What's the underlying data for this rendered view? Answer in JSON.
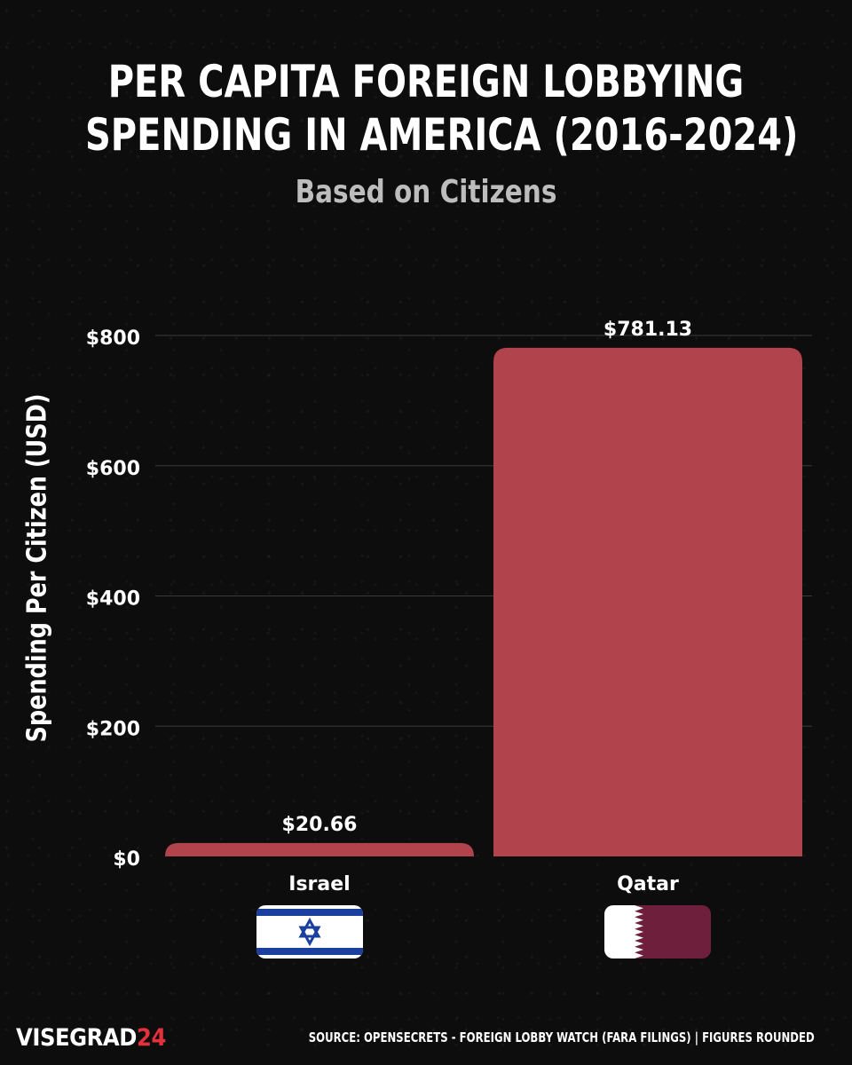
{
  "chart_data": {
    "type": "bar",
    "title_lines": [
      "Per Capita Foreign Lobbying",
      "Spending in America (2016-2024)"
    ],
    "subtitle": "Based on Citizens",
    "ylabel": "Spending Per Citizen (USD)",
    "xlabel": "",
    "categories": [
      "Israel",
      "Qatar"
    ],
    "values": [
      20.66,
      781.13
    ],
    "value_labels": [
      "$20.66",
      "$781.13"
    ],
    "ylim": [
      0,
      800
    ],
    "yticks": [
      0,
      200,
      400,
      600,
      800
    ],
    "ytick_labels": [
      "$0",
      "$200",
      "$400",
      "$600",
      "$800"
    ],
    "grid": true,
    "bar_color": "#b0434b"
  },
  "flags": [
    {
      "country": "Israel",
      "icon": "israel-flag-icon"
    },
    {
      "country": "Qatar",
      "icon": "qatar-flag-icon"
    }
  ],
  "colors": {
    "background": "#0d0d0d",
    "bar": "#b0434b",
    "subtitle": "#bdbdbd",
    "brand_accent": "#e2313c",
    "israel_blue": "#1b3f9e",
    "qatar_maroon": "#6e1f3c"
  },
  "footer": {
    "brand_main": "VISEGRAD",
    "brand_accent": "24",
    "source": "Source:  OpenSecrets - Foreign Lobby Watch (FARA Filings) | Figures Rounded"
  }
}
